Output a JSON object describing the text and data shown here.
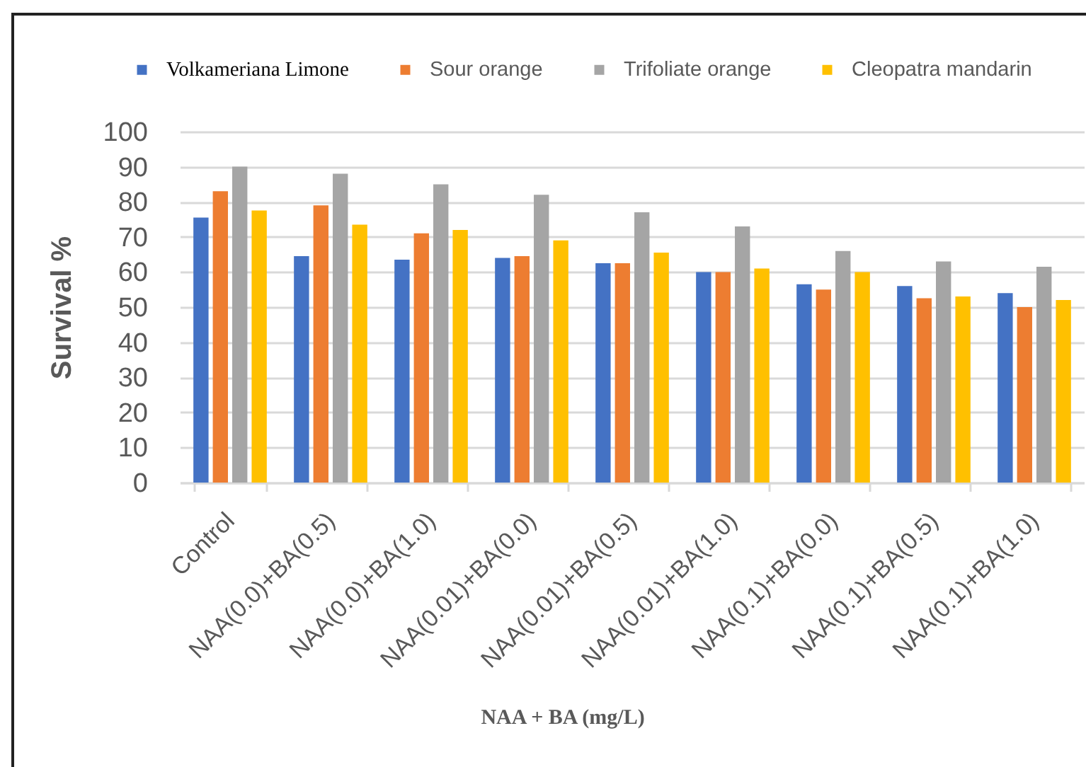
{
  "chart_data": {
    "type": "bar",
    "categories": [
      "Control",
      "NAA(0.0)+BA(0.5)",
      "NAA(0.0)+BA(1.0)",
      "NAA(0.01)+BA(0.0)",
      "NAA(0.01)+BA(0.5)",
      "NAA(0.01)+BA(1.0)",
      "NAA(0.1)+BA(0.0)",
      "NAA(0.1)+BA(0.5)",
      "NAA(0.1)+BA(1.0)"
    ],
    "series": [
      {
        "name": "Volkameriana Limone",
        "color": "#4472c4",
        "values": [
          75.5,
          64.5,
          63.5,
          64,
          62.5,
          60,
          56.5,
          56,
          54
        ]
      },
      {
        "name": "Sour orange",
        "color": "#ed7d31",
        "values": [
          83,
          79,
          71,
          64.5,
          62.5,
          60,
          55,
          52.5,
          50
        ]
      },
      {
        "name": "Trifoliate orange",
        "color": "#a5a5a5",
        "values": [
          90,
          88,
          85,
          82,
          77,
          73,
          66,
          63,
          61.5
        ]
      },
      {
        "name": "Cleopatra mandarin",
        "color": "#ffc000",
        "values": [
          77.5,
          73.5,
          72,
          69,
          65.5,
          61,
          60,
          53,
          52
        ]
      }
    ],
    "xlabel": "NAA + BA (mg/L)",
    "ylabel": "Survival %",
    "ylim": [
      0,
      100
    ],
    "yticks": [
      0,
      10,
      20,
      30,
      40,
      50,
      60,
      70,
      80,
      90,
      100
    ],
    "grid": "y",
    "legend": "top"
  }
}
